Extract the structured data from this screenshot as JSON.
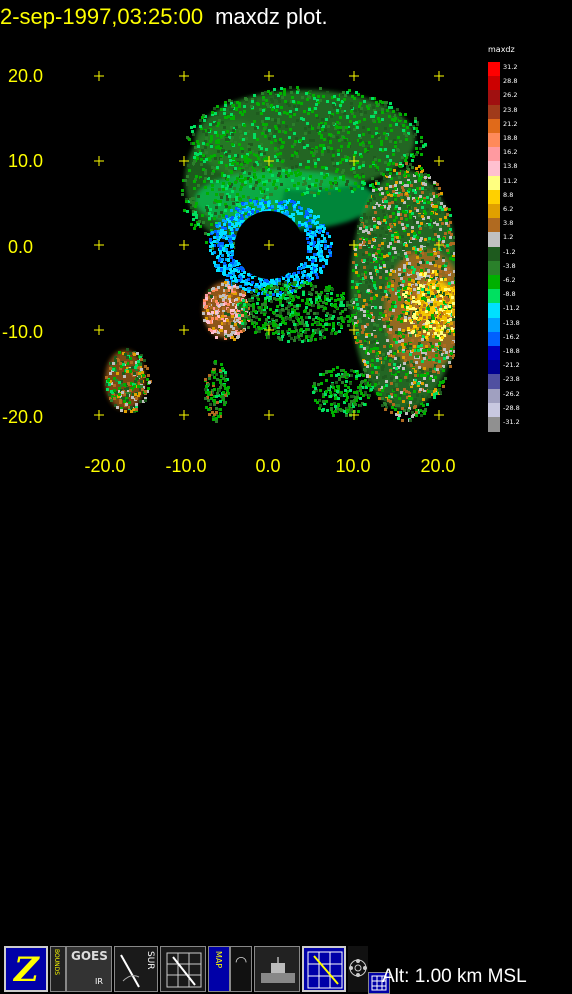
{
  "header": {
    "datetime": "2-sep-1997,03:25:00",
    "plot_label": "maxdz plot."
  },
  "axes": {
    "y_ticks": [
      "20.0",
      "10.0",
      "0.0",
      "-10.0",
      "-20.0"
    ],
    "x_ticks": [
      "-20.0",
      "-10.0",
      "0.0",
      "10.0",
      "20.0"
    ]
  },
  "colorbar": {
    "title": "maxdz",
    "levels": [
      {
        "label": "31.2",
        "color": "#ff0000"
      },
      {
        "label": "28.8",
        "color": "#cc0000"
      },
      {
        "label": "26.2",
        "color": "#a01010"
      },
      {
        "label": "23.8",
        "color": "#a03a1a"
      },
      {
        "label": "21.2",
        "color": "#e06a1a"
      },
      {
        "label": "18.8",
        "color": "#ff8a5a"
      },
      {
        "label": "16.2",
        "color": "#ff9aa0"
      },
      {
        "label": "13.8",
        "color": "#ffc0d0"
      },
      {
        "label": "11.2",
        "color": "#ffff80"
      },
      {
        "label": "8.8",
        "color": "#ffd000"
      },
      {
        "label": "6.2",
        "color": "#e0a000"
      },
      {
        "label": "3.8",
        "color": "#b06a20"
      },
      {
        "label": "1.2",
        "color": "#c0c0c0"
      },
      {
        "label": "-1.2",
        "color": "#1e5a1e"
      },
      {
        "label": "-3.8",
        "color": "#2a802a"
      },
      {
        "label": "-6.2",
        "color": "#00b000"
      },
      {
        "label": "-8.8",
        "color": "#00e060"
      },
      {
        "label": "-11.2",
        "color": "#00e0ff"
      },
      {
        "label": "-13.8",
        "color": "#00a0ff"
      },
      {
        "label": "-16.2",
        "color": "#0060ff"
      },
      {
        "label": "-18.8",
        "color": "#0000c0"
      },
      {
        "label": "-21.2",
        "color": "#000090"
      },
      {
        "label": "-23.8",
        "color": "#5050a0"
      },
      {
        "label": "-26.2",
        "color": "#a0a0c0"
      },
      {
        "label": "-28.8",
        "color": "#c8c8e0"
      },
      {
        "label": "-31.2",
        "color": "#909090"
      }
    ]
  },
  "toolbar": {
    "buttons": [
      {
        "name": "z-button",
        "icon": "z-icon",
        "text": "Z"
      },
      {
        "name": "bounds-button",
        "icon": "bounds-icon",
        "text": "BOUNDS"
      },
      {
        "name": "goes-ir-button",
        "icon": "satellite-icon",
        "text": "GOES",
        "subtext": "IR"
      },
      {
        "name": "sur-button",
        "icon": "sweep-icon",
        "text": "SUR"
      },
      {
        "name": "grid-button",
        "icon": "grid-icon",
        "text": ""
      },
      {
        "name": "map-button",
        "icon": "map-icon",
        "text": "MAP"
      },
      {
        "name": "loop-button",
        "icon": "loop-icon",
        "text": ""
      },
      {
        "name": "station-button",
        "icon": "station-icon",
        "text": ""
      },
      {
        "name": "grid-sweep-button",
        "icon": "grid-sweep-icon",
        "text": ""
      },
      {
        "name": "network-button",
        "icon": "network-icon",
        "text": ""
      },
      {
        "name": "table-button",
        "icon": "table-icon",
        "text": ""
      }
    ],
    "altitude": "Alt: 1.00 km MSL"
  }
}
